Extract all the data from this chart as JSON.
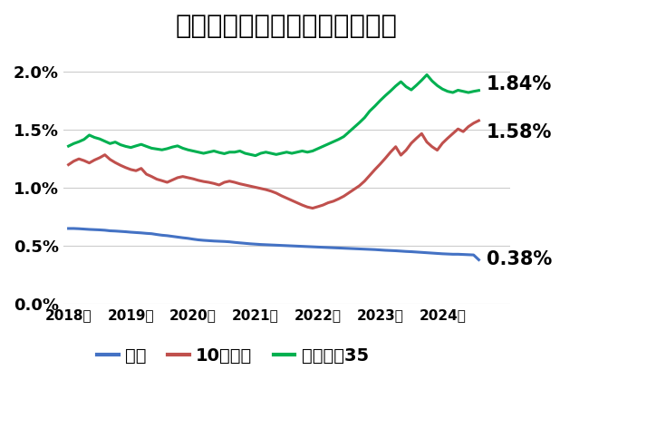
{
  "title": "変動は低位安定、固定高止まり",
  "title_fontsize": 21,
  "background_color": "#ffffff",
  "line_colors": {
    "variable": "#4472C4",
    "fixed10": "#C0504D",
    "flat35": "#00B050"
  },
  "end_labels": {
    "flat35": "1.84%",
    "fixed10": "1.58%",
    "variable": "0.38%"
  },
  "ylim": [
    0.0,
    0.022
  ],
  "yticks": [
    0.0,
    0.005,
    0.01,
    0.015,
    0.02
  ],
  "ytick_labels": [
    "0.0%",
    "0.5%",
    "1.0%",
    "1.5%",
    "2.0%"
  ],
  "legend_labels": [
    "変動",
    "10年固定",
    "フラット35"
  ],
  "x_year_labels": [
    "2018年",
    "2019年",
    "2020年",
    "2021年",
    "2022年",
    "2023年",
    "2024年"
  ],
  "variable_rate": [
    0.0065,
    0.0065,
    0.00648,
    0.00645,
    0.00642,
    0.0064,
    0.00638,
    0.00635,
    0.0063,
    0.00628,
    0.00625,
    0.00622,
    0.00618,
    0.00615,
    0.00612,
    0.00608,
    0.00605,
    0.00598,
    0.00592,
    0.00588,
    0.00582,
    0.00576,
    0.0057,
    0.00565,
    0.00558,
    0.00552,
    0.00548,
    0.00545,
    0.00542,
    0.0054,
    0.00538,
    0.00535,
    0.0053,
    0.00526,
    0.00522,
    0.00518,
    0.00515,
    0.00512,
    0.0051,
    0.00508,
    0.00506,
    0.00504,
    0.00502,
    0.005,
    0.00498,
    0.00496,
    0.00494,
    0.00492,
    0.0049,
    0.00488,
    0.00486,
    0.00484,
    0.00482,
    0.0048,
    0.00478,
    0.00476,
    0.00474,
    0.00472,
    0.0047,
    0.00468,
    0.00465,
    0.00462,
    0.0046,
    0.00458,
    0.00455,
    0.00452,
    0.0045,
    0.00447,
    0.00444,
    0.00441,
    0.00438,
    0.00435,
    0.00432,
    0.0043,
    0.00428,
    0.00428,
    0.00426,
    0.00424,
    0.00422,
    0.0038
  ],
  "fixed10_rate": [
    0.012,
    0.0123,
    0.0125,
    0.01235,
    0.01215,
    0.0124,
    0.0126,
    0.01285,
    0.01245,
    0.01218,
    0.01195,
    0.01175,
    0.01158,
    0.01148,
    0.01168,
    0.01118,
    0.01098,
    0.01075,
    0.01062,
    0.01048,
    0.01068,
    0.01088,
    0.01098,
    0.01088,
    0.01078,
    0.01065,
    0.01055,
    0.01048,
    0.01038,
    0.01025,
    0.01048,
    0.01058,
    0.01048,
    0.01035,
    0.01025,
    0.01015,
    0.01005,
    0.00995,
    0.00985,
    0.00972,
    0.00955,
    0.00932,
    0.00912,
    0.00892,
    0.00872,
    0.00852,
    0.00835,
    0.00825,
    0.00838,
    0.00852,
    0.00872,
    0.00885,
    0.00905,
    0.00928,
    0.00958,
    0.00988,
    0.01018,
    0.01058,
    0.01108,
    0.01158,
    0.01205,
    0.01255,
    0.01308,
    0.01355,
    0.01282,
    0.01325,
    0.01385,
    0.01428,
    0.01468,
    0.01395,
    0.01355,
    0.01325,
    0.01385,
    0.01428,
    0.01468,
    0.01508,
    0.01485,
    0.01528,
    0.01558,
    0.0158
  ],
  "flat35_rate": [
    0.0136,
    0.01382,
    0.01398,
    0.01418,
    0.01455,
    0.01435,
    0.01422,
    0.01402,
    0.01382,
    0.01395,
    0.01372,
    0.01358,
    0.01348,
    0.01362,
    0.01375,
    0.01358,
    0.01342,
    0.01335,
    0.01328,
    0.01338,
    0.01352,
    0.01362,
    0.01342,
    0.01328,
    0.01318,
    0.01308,
    0.01298,
    0.01308,
    0.01318,
    0.01305,
    0.01295,
    0.01308,
    0.01308,
    0.01318,
    0.01298,
    0.01288,
    0.01278,
    0.01298,
    0.01308,
    0.01298,
    0.01288,
    0.01298,
    0.01308,
    0.01298,
    0.01308,
    0.01318,
    0.01308,
    0.01318,
    0.01338,
    0.01358,
    0.01378,
    0.01398,
    0.01418,
    0.01442,
    0.01482,
    0.01522,
    0.01562,
    0.01605,
    0.01662,
    0.01705,
    0.01752,
    0.01795,
    0.01835,
    0.01878,
    0.01915,
    0.01872,
    0.01845,
    0.01885,
    0.01928,
    0.01975,
    0.01922,
    0.01882,
    0.01852,
    0.01832,
    0.01822,
    0.01842,
    0.01832,
    0.01822,
    0.01832,
    0.0184
  ],
  "n_months": 80
}
